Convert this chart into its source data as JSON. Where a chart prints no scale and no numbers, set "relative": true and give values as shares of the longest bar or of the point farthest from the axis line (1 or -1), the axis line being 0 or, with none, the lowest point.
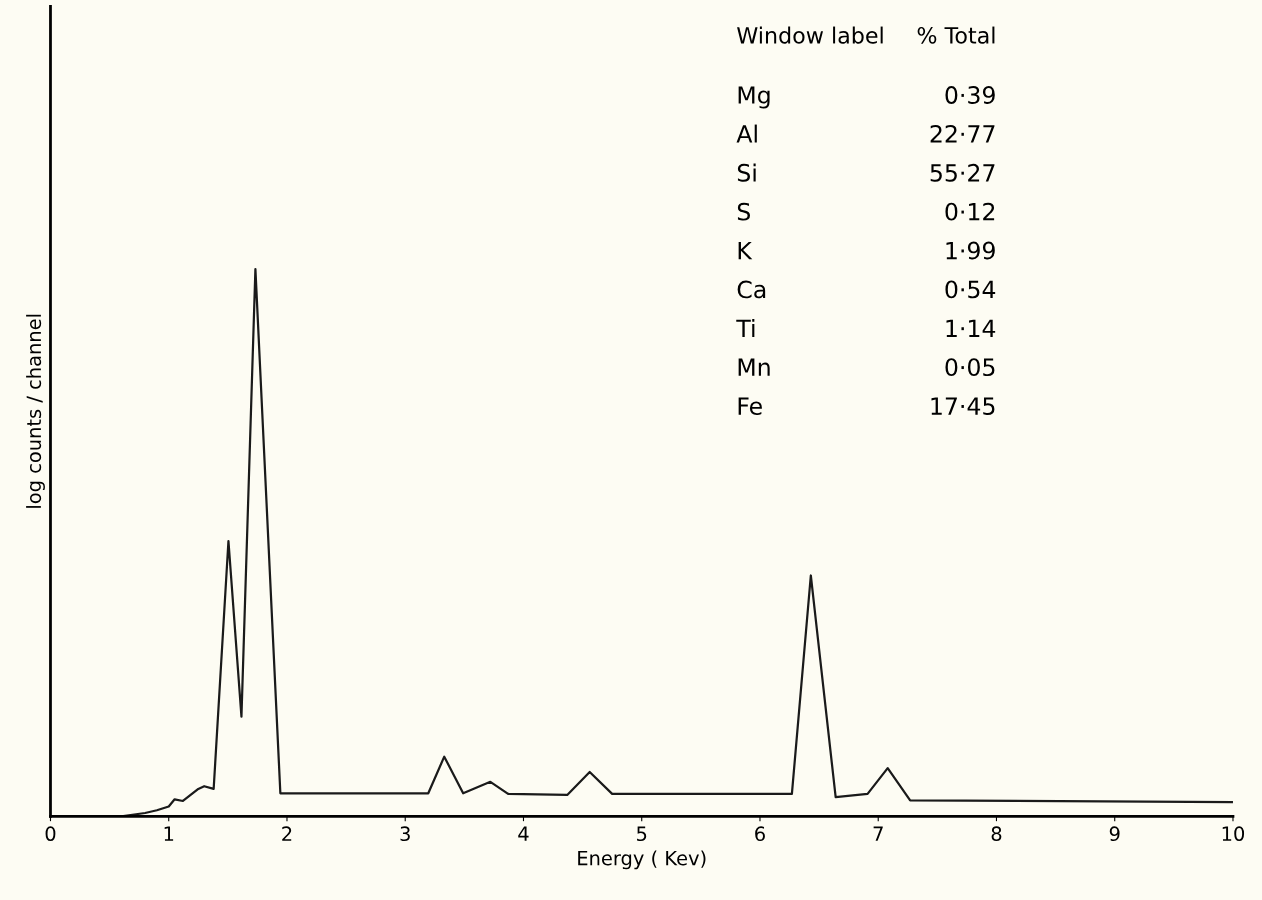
{
  "chart_data": {
    "type": "line",
    "relative": true,
    "xlabel": "Energy ( Kev)",
    "ylabel": "log counts / channel",
    "xlim": [
      0,
      10
    ],
    "xticks": [
      0,
      1,
      2,
      3,
      4,
      5,
      6,
      7,
      8,
      9,
      10
    ],
    "grid": false,
    "legend": false,
    "marker": "none",
    "line_style": "solid",
    "series": [
      {
        "color": "#1a1a1a",
        "x": [
          0,
          0.6,
          0.8,
          0.9,
          1.0,
          1.05,
          1.12,
          1.25,
          1.3,
          1.38,
          1.505,
          1.615,
          1.733,
          1.944,
          3.195,
          3.33,
          3.49,
          3.72,
          3.87,
          4.37,
          4.56,
          4.75,
          6.27,
          6.43,
          6.64,
          6.91,
          7.08,
          7.27,
          10
        ],
        "values": [
          0,
          0,
          0.006,
          0.011,
          0.018,
          0.031,
          0.028,
          0.05,
          0.055,
          0.05,
          0.503,
          0.182,
          1.0,
          0.042,
          0.042,
          0.109,
          0.042,
          0.063,
          0.041,
          0.039,
          0.081,
          0.041,
          0.041,
          0.44,
          0.035,
          0.041,
          0.088,
          0.029,
          0.026
        ]
      }
    ],
    "annotations": [
      "Window label",
      "% Total",
      "Mg",
      "0·39",
      "Al",
      "22·77",
      "Si",
      "55·27",
      "S",
      "0·12",
      "K",
      "1·99",
      "Ca",
      "0·54",
      "Ti",
      "1·14",
      "Mn",
      "0·05",
      "Fe",
      "17·45"
    ]
  }
}
